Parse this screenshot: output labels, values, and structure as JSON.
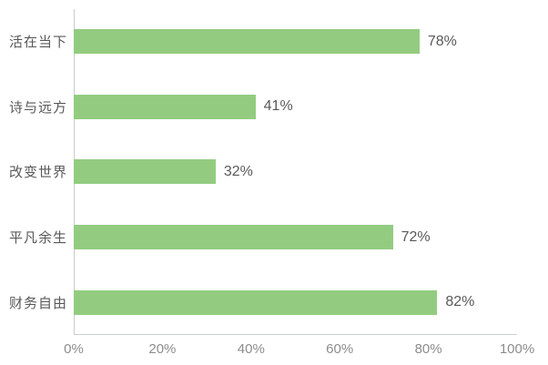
{
  "chart_data": {
    "type": "bar",
    "orientation": "horizontal",
    "title": "",
    "xlabel": "",
    "ylabel": "",
    "categories": [
      "活在当下",
      "诗与远方",
      "改变世界",
      "平凡余生",
      "财务自由"
    ],
    "values": [
      78,
      41,
      32,
      72,
      82
    ],
    "value_labels": [
      "78%",
      "41%",
      "32%",
      "72%",
      "82%"
    ],
    "x_ticks": [
      "0%",
      "20%",
      "40%",
      "60%",
      "80%",
      "100%"
    ],
    "x_tick_positions": [
      0,
      20,
      40,
      60,
      80,
      100
    ],
    "xlim": [
      0,
      100
    ],
    "grid": false,
    "legend": false,
    "bar_color": "#93cc80",
    "label_color": "#595959",
    "tick_color": "#8c8c8c",
    "axis_line_color": "#c9cdd1"
  }
}
